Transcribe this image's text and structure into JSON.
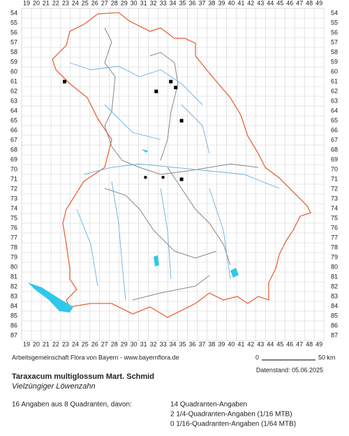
{
  "grid_columns": [
    19,
    20,
    21,
    22,
    23,
    24,
    25,
    26,
    27,
    28,
    29,
    30,
    31,
    32,
    33,
    34,
    35,
    36,
    37,
    38,
    39,
    40,
    41,
    42,
    43,
    44,
    45,
    46,
    47,
    48,
    49
  ],
  "grid_rows": [
    54,
    55,
    56,
    57,
    58,
    59,
    60,
    61,
    62,
    63,
    64,
    65,
    66,
    67,
    68,
    69,
    70,
    71,
    72,
    73,
    74,
    75,
    76,
    77,
    78,
    79,
    80,
    81,
    82,
    83,
    84,
    85,
    86,
    87
  ],
  "occurrences": [
    {
      "x": 22.9,
      "y": 61,
      "symbol": "square"
    },
    {
      "x": 33.8,
      "y": 61,
      "symbol": "square"
    },
    {
      "x": 34.3,
      "y": 61.6,
      "symbol": "square"
    },
    {
      "x": 32.3,
      "y": 62,
      "symbol": "square"
    },
    {
      "x": 34.9,
      "y": 65,
      "symbol": "square"
    },
    {
      "x": 34.9,
      "y": 71,
      "symbol": "square"
    },
    {
      "x": 31.2,
      "y": 70.8,
      "symbol": "dot"
    },
    {
      "x": 33.0,
      "y": 70.8,
      "symbol": "dot"
    }
  ],
  "footer": {
    "credit": "Arbeitsgemeinschaft Flora von Bayern - www.bayernflora.de",
    "scale_start": "0",
    "scale_end": "50 km",
    "date": "Datenstand: 05.06.2025",
    "species": "Taraxacum multiglossum Mart. Schmid",
    "common_name": "Vielzüngiger Löwenzahn",
    "summary": "16 Angaben aus 8 Quadranten, davon:",
    "counts": [
      "14 Quadranten-Angaben",
      "2 1/4-Quadranten-Angaben (1/16 MTB)",
      "0 1/16-Quadranten-Angaben (1/64 MTB)"
    ]
  }
}
